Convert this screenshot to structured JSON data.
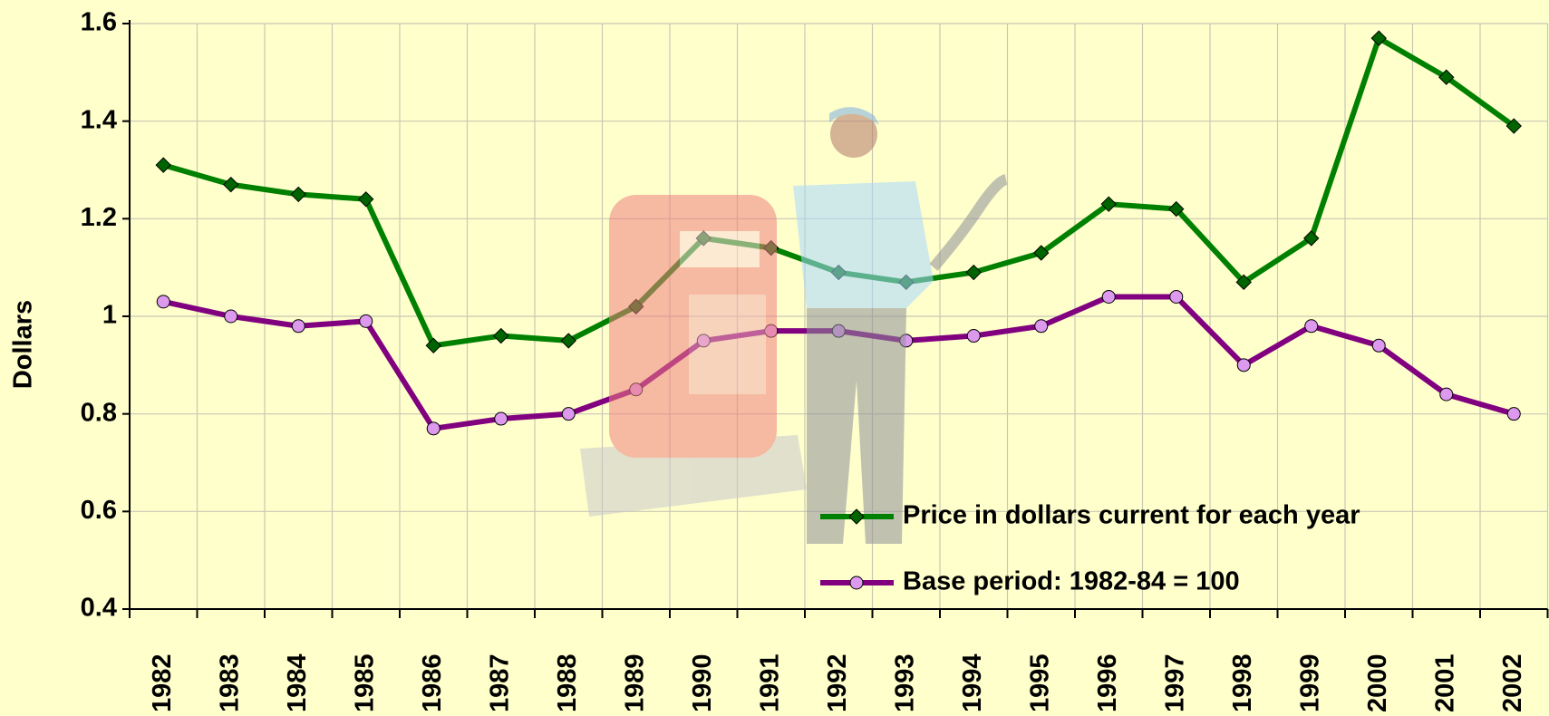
{
  "chart_data": {
    "type": "line",
    "y_label": "Dollars",
    "categories": [
      "1982",
      "1983",
      "1984",
      "1985",
      "1986",
      "1987",
      "1988",
      "1989",
      "1990",
      "1991",
      "1992",
      "1993",
      "1994",
      "1995",
      "1996",
      "1997",
      "1998",
      "1999",
      "2000",
      "2001",
      "2002"
    ],
    "series": [
      {
        "name": "Price in dollars current for each year",
        "color": "#008000",
        "marker_fill": "#006400",
        "marker": "diamond",
        "values": [
          1.31,
          1.27,
          1.25,
          1.24,
          0.94,
          0.96,
          0.95,
          1.02,
          1.16,
          1.14,
          1.09,
          1.07,
          1.09,
          1.13,
          1.23,
          1.22,
          1.07,
          1.16,
          1.57,
          1.49,
          1.39
        ]
      },
      {
        "name": "Base period: 1982-84 = 100",
        "color": "#800080",
        "marker_fill": "#dd99ee",
        "marker": "circle",
        "values": [
          1.03,
          1.0,
          0.98,
          0.99,
          0.77,
          0.79,
          0.8,
          0.85,
          0.95,
          0.97,
          0.97,
          0.95,
          0.96,
          0.98,
          1.04,
          1.04,
          0.9,
          0.98,
          0.94,
          0.84,
          0.8
        ]
      }
    ],
    "ylim": [
      0.4,
      1.6
    ],
    "yticks": [
      0.4,
      0.6,
      0.8,
      1,
      1.2,
      1.4,
      1.6
    ],
    "grid": true
  }
}
